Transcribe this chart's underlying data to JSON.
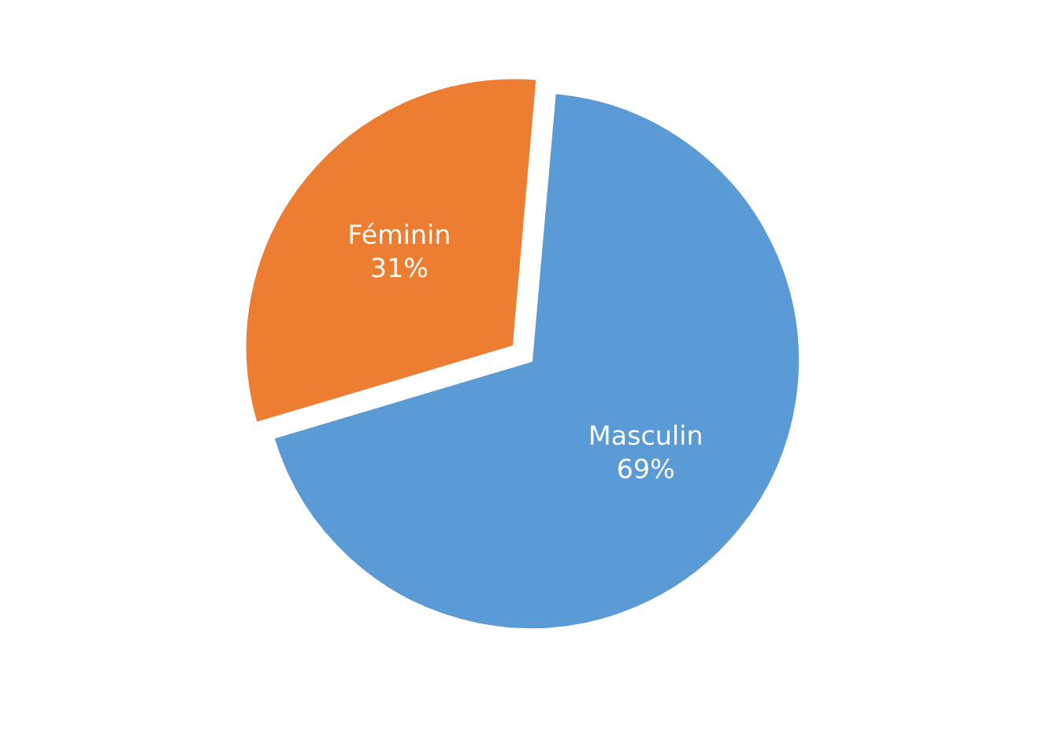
{
  "chart_data": {
    "type": "pie",
    "categories": [
      "Masculin",
      "Féminin"
    ],
    "values": [
      69,
      31
    ],
    "colors": [
      "#5b9bd5",
      "#ed7d31"
    ],
    "value_labels": [
      "69%",
      "31%"
    ],
    "legend": false
  }
}
